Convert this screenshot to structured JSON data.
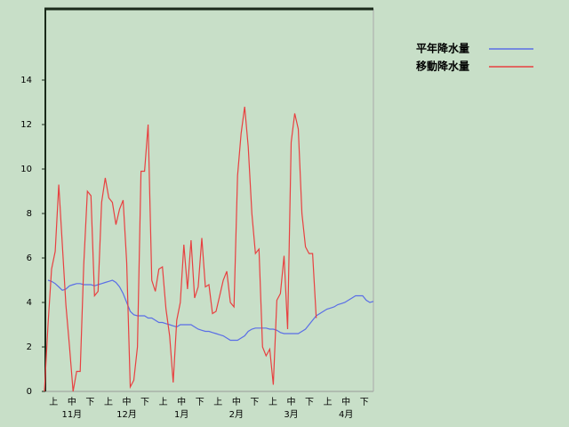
{
  "chart_data": {
    "type": "line",
    "ylim": [
      0,
      17.2
    ],
    "yticks": [
      0,
      2,
      4,
      6,
      8,
      10,
      12,
      14
    ],
    "grid": false,
    "legend": "top-right",
    "period_labels": [
      "上",
      "中",
      "下",
      "上",
      "中",
      "下",
      "上",
      "中",
      "下",
      "上",
      "中",
      "下",
      "上",
      "中",
      "下",
      "上",
      "中",
      "下"
    ],
    "month_labels": [
      "11月",
      "12月",
      "1月",
      "2月",
      "3月",
      "4月"
    ],
    "series": [
      {
        "name": "平年降水量",
        "color": "#5a6ee6",
        "values": [
          null,
          5.0,
          4.95,
          4.85,
          4.7,
          4.55,
          4.6,
          4.75,
          4.8,
          4.85,
          4.85,
          4.8,
          4.8,
          4.8,
          4.75,
          4.8,
          4.85,
          4.9,
          4.95,
          5.0,
          4.9,
          4.7,
          4.4,
          4.0,
          3.6,
          3.45,
          3.4,
          3.4,
          3.4,
          3.3,
          3.3,
          3.2,
          3.1,
          3.1,
          3.05,
          3.0,
          2.95,
          2.9,
          3.0,
          3.0,
          3.0,
          3.0,
          2.9,
          2.8,
          2.75,
          2.7,
          2.7,
          2.65,
          2.6,
          2.55,
          2.5,
          2.4,
          2.3,
          2.3,
          2.3,
          2.4,
          2.5,
          2.7,
          2.8,
          2.85,
          2.85,
          2.85,
          2.85,
          2.8,
          2.8,
          2.75,
          2.65,
          2.6,
          2.6,
          2.6,
          2.6,
          2.6,
          2.7,
          2.8,
          3.0,
          3.2,
          3.4,
          3.5,
          3.6,
          3.7,
          3.75,
          3.8,
          3.9,
          3.95,
          4.0,
          4.1,
          4.2,
          4.3,
          4.3,
          4.3,
          4.1,
          4.0,
          4.05
        ]
      },
      {
        "name": "移動降水量",
        "color": "#e84040",
        "values": [
          0,
          3,
          5.5,
          6.3,
          9.3,
          6.6,
          3.9,
          2,
          0,
          0.9,
          0.9,
          5.7,
          9,
          8.8,
          4.3,
          4.5,
          8.5,
          9.6,
          8.7,
          8.5,
          7.5,
          8.2,
          8.6,
          5.8,
          0.2,
          0.5,
          2,
          9.9,
          9.9,
          12,
          5,
          4.5,
          5.5,
          5.6,
          3.7,
          2.5,
          0.4,
          3.2,
          4,
          6.6,
          4.6,
          6.8,
          4.2,
          4.7,
          6.9,
          4.7,
          4.8,
          3.5,
          3.6,
          4.3,
          5,
          5.4,
          4,
          3.8,
          9.7,
          11.6,
          12.8,
          11,
          8,
          6.2,
          6.4,
          2,
          1.6,
          1.9,
          0.3,
          4.1,
          4.4,
          6.1,
          2.8,
          11.2,
          12.5,
          11.8,
          8,
          6.5,
          6.2,
          6.2,
          3.3,
          null,
          null,
          null,
          null,
          null,
          null,
          null,
          null,
          null,
          null,
          null,
          null,
          null,
          null,
          null,
          null
        ]
      }
    ]
  }
}
